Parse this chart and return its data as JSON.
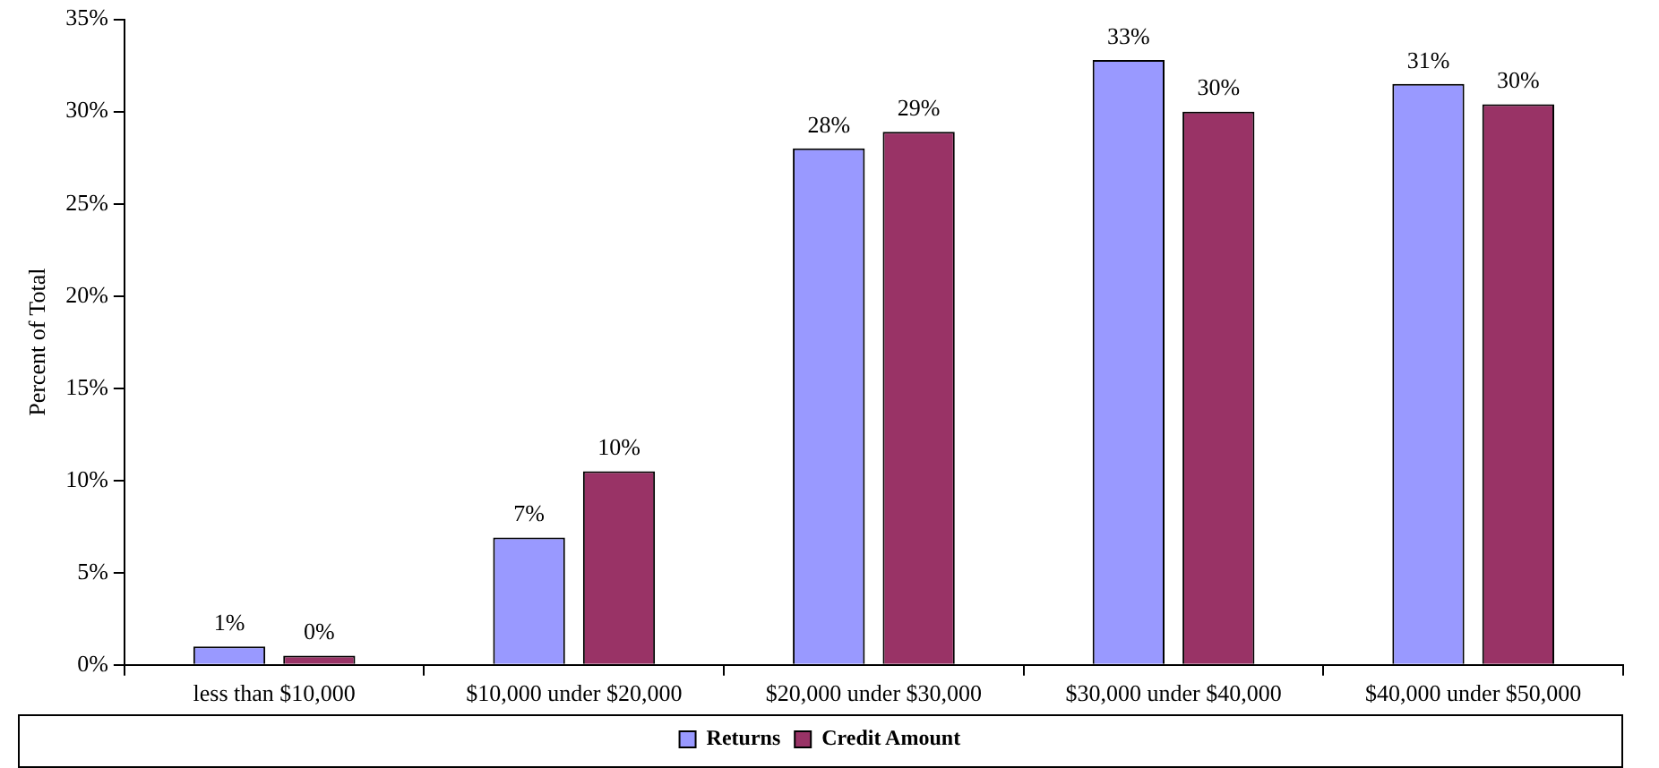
{
  "chart_data": {
    "type": "bar",
    "ylabel": "Percent of Total",
    "categories": [
      "less than $10,000",
      "$10,000 under $20,000",
      "$20,000 under $30,000",
      "$30,000 under $40,000",
      "$40,000 under $50,000"
    ],
    "series": [
      {
        "name": "Returns",
        "color": "#9999ff",
        "values": [
          1.0,
          6.9,
          28.0,
          32.8,
          31.5
        ],
        "value_labels": [
          "1%",
          "7%",
          "28%",
          "33%",
          "31%"
        ]
      },
      {
        "name": "Credit Amount",
        "color": "#993366",
        "values": [
          0.5,
          10.5,
          28.9,
          30.0,
          30.4
        ],
        "value_labels": [
          "0%",
          "10%",
          "29%",
          "30%",
          "30%"
        ]
      }
    ],
    "ylim": [
      0,
      35
    ],
    "yticks": [
      {
        "value": 0,
        "label": "0%"
      },
      {
        "value": 5,
        "label": "5%"
      },
      {
        "value": 10,
        "label": "10%"
      },
      {
        "value": 15,
        "label": "15%"
      },
      {
        "value": 20,
        "label": "20%"
      },
      {
        "value": 25,
        "label": "25%"
      },
      {
        "value": 30,
        "label": "30%"
      },
      {
        "value": 35,
        "label": "35%"
      }
    ],
    "grid": false,
    "legend": "bottom"
  }
}
